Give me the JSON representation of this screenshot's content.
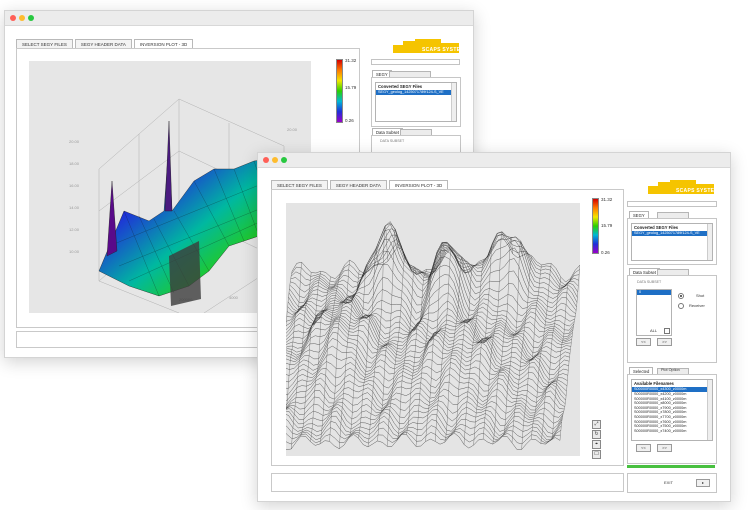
{
  "colors": {
    "accent_yellow": "#f5c400",
    "selection_blue": "#1e6fc5",
    "progress_green": "#48c040"
  },
  "back_window": {
    "tabs": [
      {
        "label": "SELECT SEGY FILES"
      },
      {
        "label": "SEGY HEADER DATA"
      },
      {
        "label": "INVERSION PLOT - 3D"
      }
    ],
    "logo_text": "SCAPS SYSTEM",
    "colorbar": {
      "max": "31.32",
      "mid": "15.79",
      "min": "0.26"
    },
    "segy_tab": "SEGY",
    "converted_header": "Converted SEGY Files",
    "converted_item": "SEGY_geolog_1425071789f124-S_VE",
    "data_subset_tab": "Data Subset",
    "data_subset_label": "DATA SUBSET"
  },
  "front_window": {
    "tabs": [
      {
        "label": "SELECT SEGY FILES"
      },
      {
        "label": "SEGY HEADER DATA"
      },
      {
        "label": "INVERSION PLOT - 3D"
      }
    ],
    "logo_text": "SCAPS SYSTEM",
    "colorbar": {
      "max": "31.32",
      "mid": "15.79",
      "min": "0.26"
    },
    "segy_tab": "SEGY",
    "converted_header": "Converted SEGY Files",
    "converted_item": "SEGY_geolog_1425071789f124-S_VE",
    "data_subset_tab": "Data Subset",
    "data_subset_label": "DATA SUBSET",
    "subset_value": "0",
    "radio_shot": "Shot",
    "radio_receiver": "Receiver",
    "btn_prev": "<<",
    "btn_next": ">>",
    "all_label": "ALL",
    "selected_tab": "Selected",
    "plot_option_tab": "Plot Option",
    "available_header": "Available Filenames",
    "filenames": [
      "S00000R0000_x4300_z0000m",
      "S00000R0000_x4200_z0000m",
      "S00000R0000_x4100_z0000m",
      "S00000R0000_x8000_z0000m",
      "S00000R0000_x7900_z0000m",
      "S00000R0000_x7800_z0000m",
      "S00000R0000_x7700_z0000m",
      "S00000R0000_x7600_z0000m",
      "S00000R0000_x7500_z0000m",
      "S00000R0000_x7400_z0000m"
    ],
    "exit_label": "EXIT",
    "arrow_label": "▸",
    "tools": [
      "⤢",
      "↻",
      "⌖",
      "☐"
    ]
  }
}
